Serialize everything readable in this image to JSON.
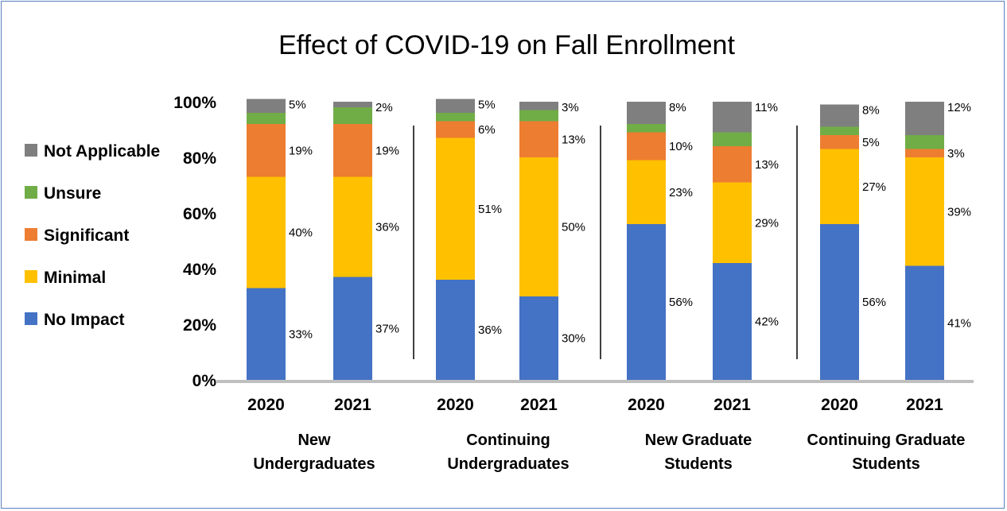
{
  "chart_data": {
    "type": "stacked-bar",
    "title": "Effect of COVID-19 on Fall Enrollment",
    "ylim": [
      0,
      100
    ],
    "yticks": [
      "0%",
      "20%",
      "40%",
      "60%",
      "80%",
      "100%"
    ],
    "legend_position": "left",
    "grid": false,
    "groups": [
      {
        "label_lines": [
          "New",
          "Undergraduates"
        ],
        "years": [
          "2020",
          "2021"
        ]
      },
      {
        "label_lines": [
          "Continuing",
          "Undergraduates"
        ],
        "years": [
          "2020",
          "2021"
        ]
      },
      {
        "label_lines": [
          "New Graduate",
          "Students"
        ],
        "years": [
          "2020",
          "2021"
        ]
      },
      {
        "label_lines": [
          "Continuing Graduate",
          "Students"
        ],
        "years": [
          "2020",
          "2021"
        ]
      }
    ],
    "series": [
      {
        "name": "No Impact",
        "color": "#4472c4",
        "values": [
          33,
          37,
          36,
          30,
          56,
          42,
          56,
          41
        ],
        "labels": [
          "33%",
          "37%",
          "36%",
          "30%",
          "56%",
          "42%",
          "56%",
          "41%"
        ]
      },
      {
        "name": "Minimal",
        "color": "#ffc000",
        "values": [
          40,
          36,
          51,
          50,
          23,
          29,
          27,
          39
        ],
        "labels": [
          "40%",
          "36%",
          "51%",
          "50%",
          "23%",
          "29%",
          "27%",
          "39%"
        ]
      },
      {
        "name": "Significant",
        "color": "#ed7d31",
        "values": [
          19,
          19,
          6,
          13,
          10,
          13,
          5,
          3
        ],
        "labels": [
          "19%",
          "19%",
          "6%",
          "13%",
          "10%",
          "13%",
          "5%",
          "3%"
        ]
      },
      {
        "name": "Unsure",
        "color": "#70ad47",
        "values": [
          4,
          6,
          3,
          4,
          3,
          5,
          3,
          5
        ],
        "labels": []
      },
      {
        "name": "Not Applicable",
        "color": "#7f7f7f",
        "values": [
          5,
          2,
          5,
          3,
          8,
          11,
          8,
          12
        ],
        "labels": [
          "5%",
          "2%",
          "5%",
          "3%",
          "8%",
          "11%",
          "8%",
          "12%"
        ]
      }
    ]
  }
}
